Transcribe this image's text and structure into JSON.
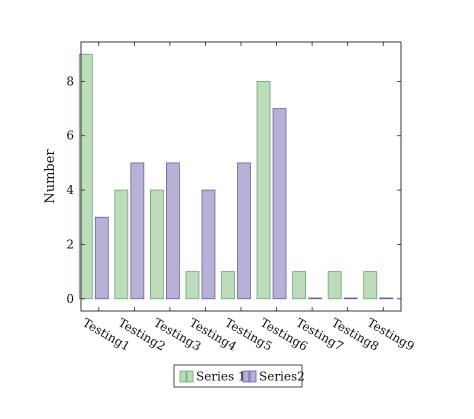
{
  "chart_data": {
    "type": "bar",
    "title": "",
    "xlabel": "",
    "ylabel": "Number",
    "categories": [
      "Testing1",
      "Testing2",
      "Testing3",
      "Testing4",
      "Testing5",
      "Testing6",
      "Testing7",
      "Testing8",
      "Testing9"
    ],
    "series": [
      {
        "name": "Series 1",
        "values": [
          9,
          4,
          4,
          1,
          1,
          8,
          1,
          1,
          1
        ],
        "color": "#bcdcbc",
        "stroke": "#6aa86a"
      },
      {
        "name": "Series2",
        "values": [
          3,
          5,
          5,
          4,
          5,
          7,
          0,
          0,
          0
        ],
        "color": "#b9b0d6",
        "stroke": "#6b5ea6"
      }
    ],
    "ylim": [
      -0.45,
      9.45
    ],
    "yticks": [
      0,
      2,
      4,
      6,
      8
    ],
    "grid": false,
    "legend_position": "bottom-center"
  }
}
